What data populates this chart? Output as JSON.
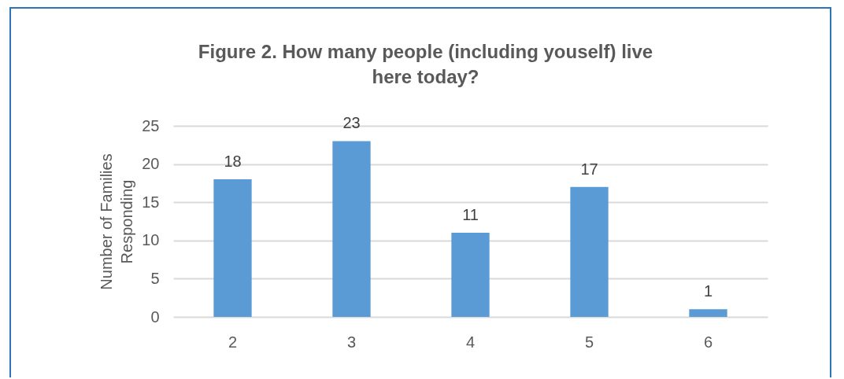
{
  "chart_data": {
    "type": "bar",
    "title": "Figure 2. How many people (including youself) live here today?",
    "ylabel": "Number of Families Responding",
    "categories": [
      "2",
      "3",
      "4",
      "5",
      "6"
    ],
    "values": [
      18,
      23,
      11,
      17,
      1
    ],
    "color": "#5b9bd5",
    "ylim": [
      0,
      25
    ],
    "yticks": [
      0,
      5,
      10,
      15,
      20,
      25
    ],
    "grid": true,
    "data_labels": true
  }
}
